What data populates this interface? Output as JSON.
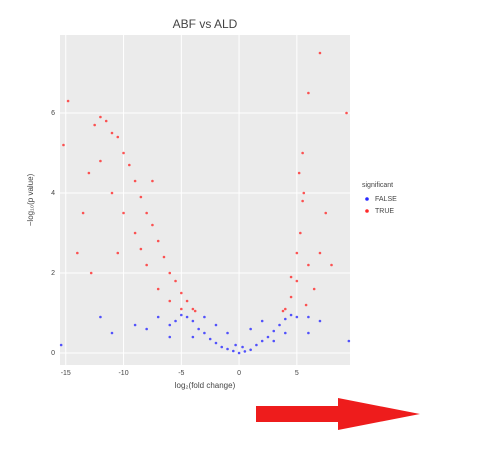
{
  "chart_data": {
    "type": "scatter",
    "title": "ABF vs ALD",
    "x_label": "log₂(fold change)",
    "y_label": "−log₁₀(p value)",
    "legend_title": "significant",
    "legend_position": "right",
    "grid": true,
    "xlim": [
      -15.5,
      9.6
    ],
    "ylim": [
      -0.3,
      7.95
    ],
    "xticks": [
      -15,
      -10,
      -5,
      0,
      5
    ],
    "yticks": [
      0,
      2,
      4,
      6
    ],
    "series": [
      {
        "name": "FALSE",
        "color": "#2a2aff",
        "x": [
          0,
          -0.5,
          0.5,
          -1,
          1,
          -1.5,
          1.5,
          -2,
          2,
          -2.5,
          2.5,
          -3,
          3,
          -3.5,
          3.5,
          -4,
          4,
          -4.5,
          4.5,
          -5,
          5,
          -5.5,
          6,
          -6,
          7,
          -7,
          -8,
          -9,
          -11,
          -12,
          -1,
          1,
          -2,
          2,
          -3,
          3,
          -4,
          4,
          -6,
          6,
          -15.4,
          9.5,
          -0.3,
          0.3
        ],
        "values": [
          0,
          0.05,
          0.04,
          0.1,
          0.08,
          0.15,
          0.2,
          0.25,
          0.3,
          0.35,
          0.4,
          0.5,
          0.55,
          0.6,
          0.7,
          0.8,
          0.85,
          0.9,
          0.95,
          0.95,
          0.9,
          0.8,
          0.9,
          0.7,
          0.8,
          0.9,
          0.6,
          0.7,
          0.5,
          0.9,
          0.5,
          0.6,
          0.7,
          0.8,
          0.9,
          0.3,
          0.4,
          0.5,
          0.4,
          0.5,
          0.2,
          0.3,
          0.2,
          0.15
        ]
      },
      {
        "name": "TRUE",
        "color": "#ff2a2a",
        "x": [
          -4,
          -4.5,
          -5,
          -5.5,
          -6,
          -6.5,
          -7,
          -7.5,
          -8,
          -8.5,
          -9,
          -9.5,
          -10,
          -10.5,
          -11,
          -11.5,
          -12,
          -12.5,
          -13,
          -13.5,
          -14,
          -6,
          -7,
          -8,
          -9,
          -10,
          -11,
          -12,
          -5,
          -7.5,
          -8.5,
          -10.5,
          -12.8,
          4,
          4.5,
          5,
          5,
          5.3,
          5.5,
          5.6,
          5.2,
          5.5,
          6,
          6.5,
          7,
          7.5,
          8,
          6,
          7,
          9.3,
          4.5,
          5.8,
          -3.8,
          3.8,
          -15.2,
          -14.8
        ],
        "values": [
          1.1,
          1.3,
          1.5,
          1.8,
          2,
          2.4,
          2.8,
          3.2,
          3.5,
          3.9,
          4.3,
          4.7,
          5,
          5.4,
          5.5,
          5.8,
          5.9,
          5.7,
          4.5,
          3.5,
          2.5,
          1.3,
          1.6,
          2.2,
          3,
          3.5,
          4,
          4.8,
          1.1,
          4.3,
          2.6,
          2.5,
          2,
          1.1,
          1.4,
          1.8,
          2.5,
          3,
          3.8,
          4,
          4.5,
          5,
          2.2,
          1.6,
          2.5,
          3.5,
          2.2,
          6.5,
          7.5,
          6,
          1.9,
          1.2,
          1.05,
          1.05,
          5.2,
          6.3
        ]
      }
    ]
  }
}
